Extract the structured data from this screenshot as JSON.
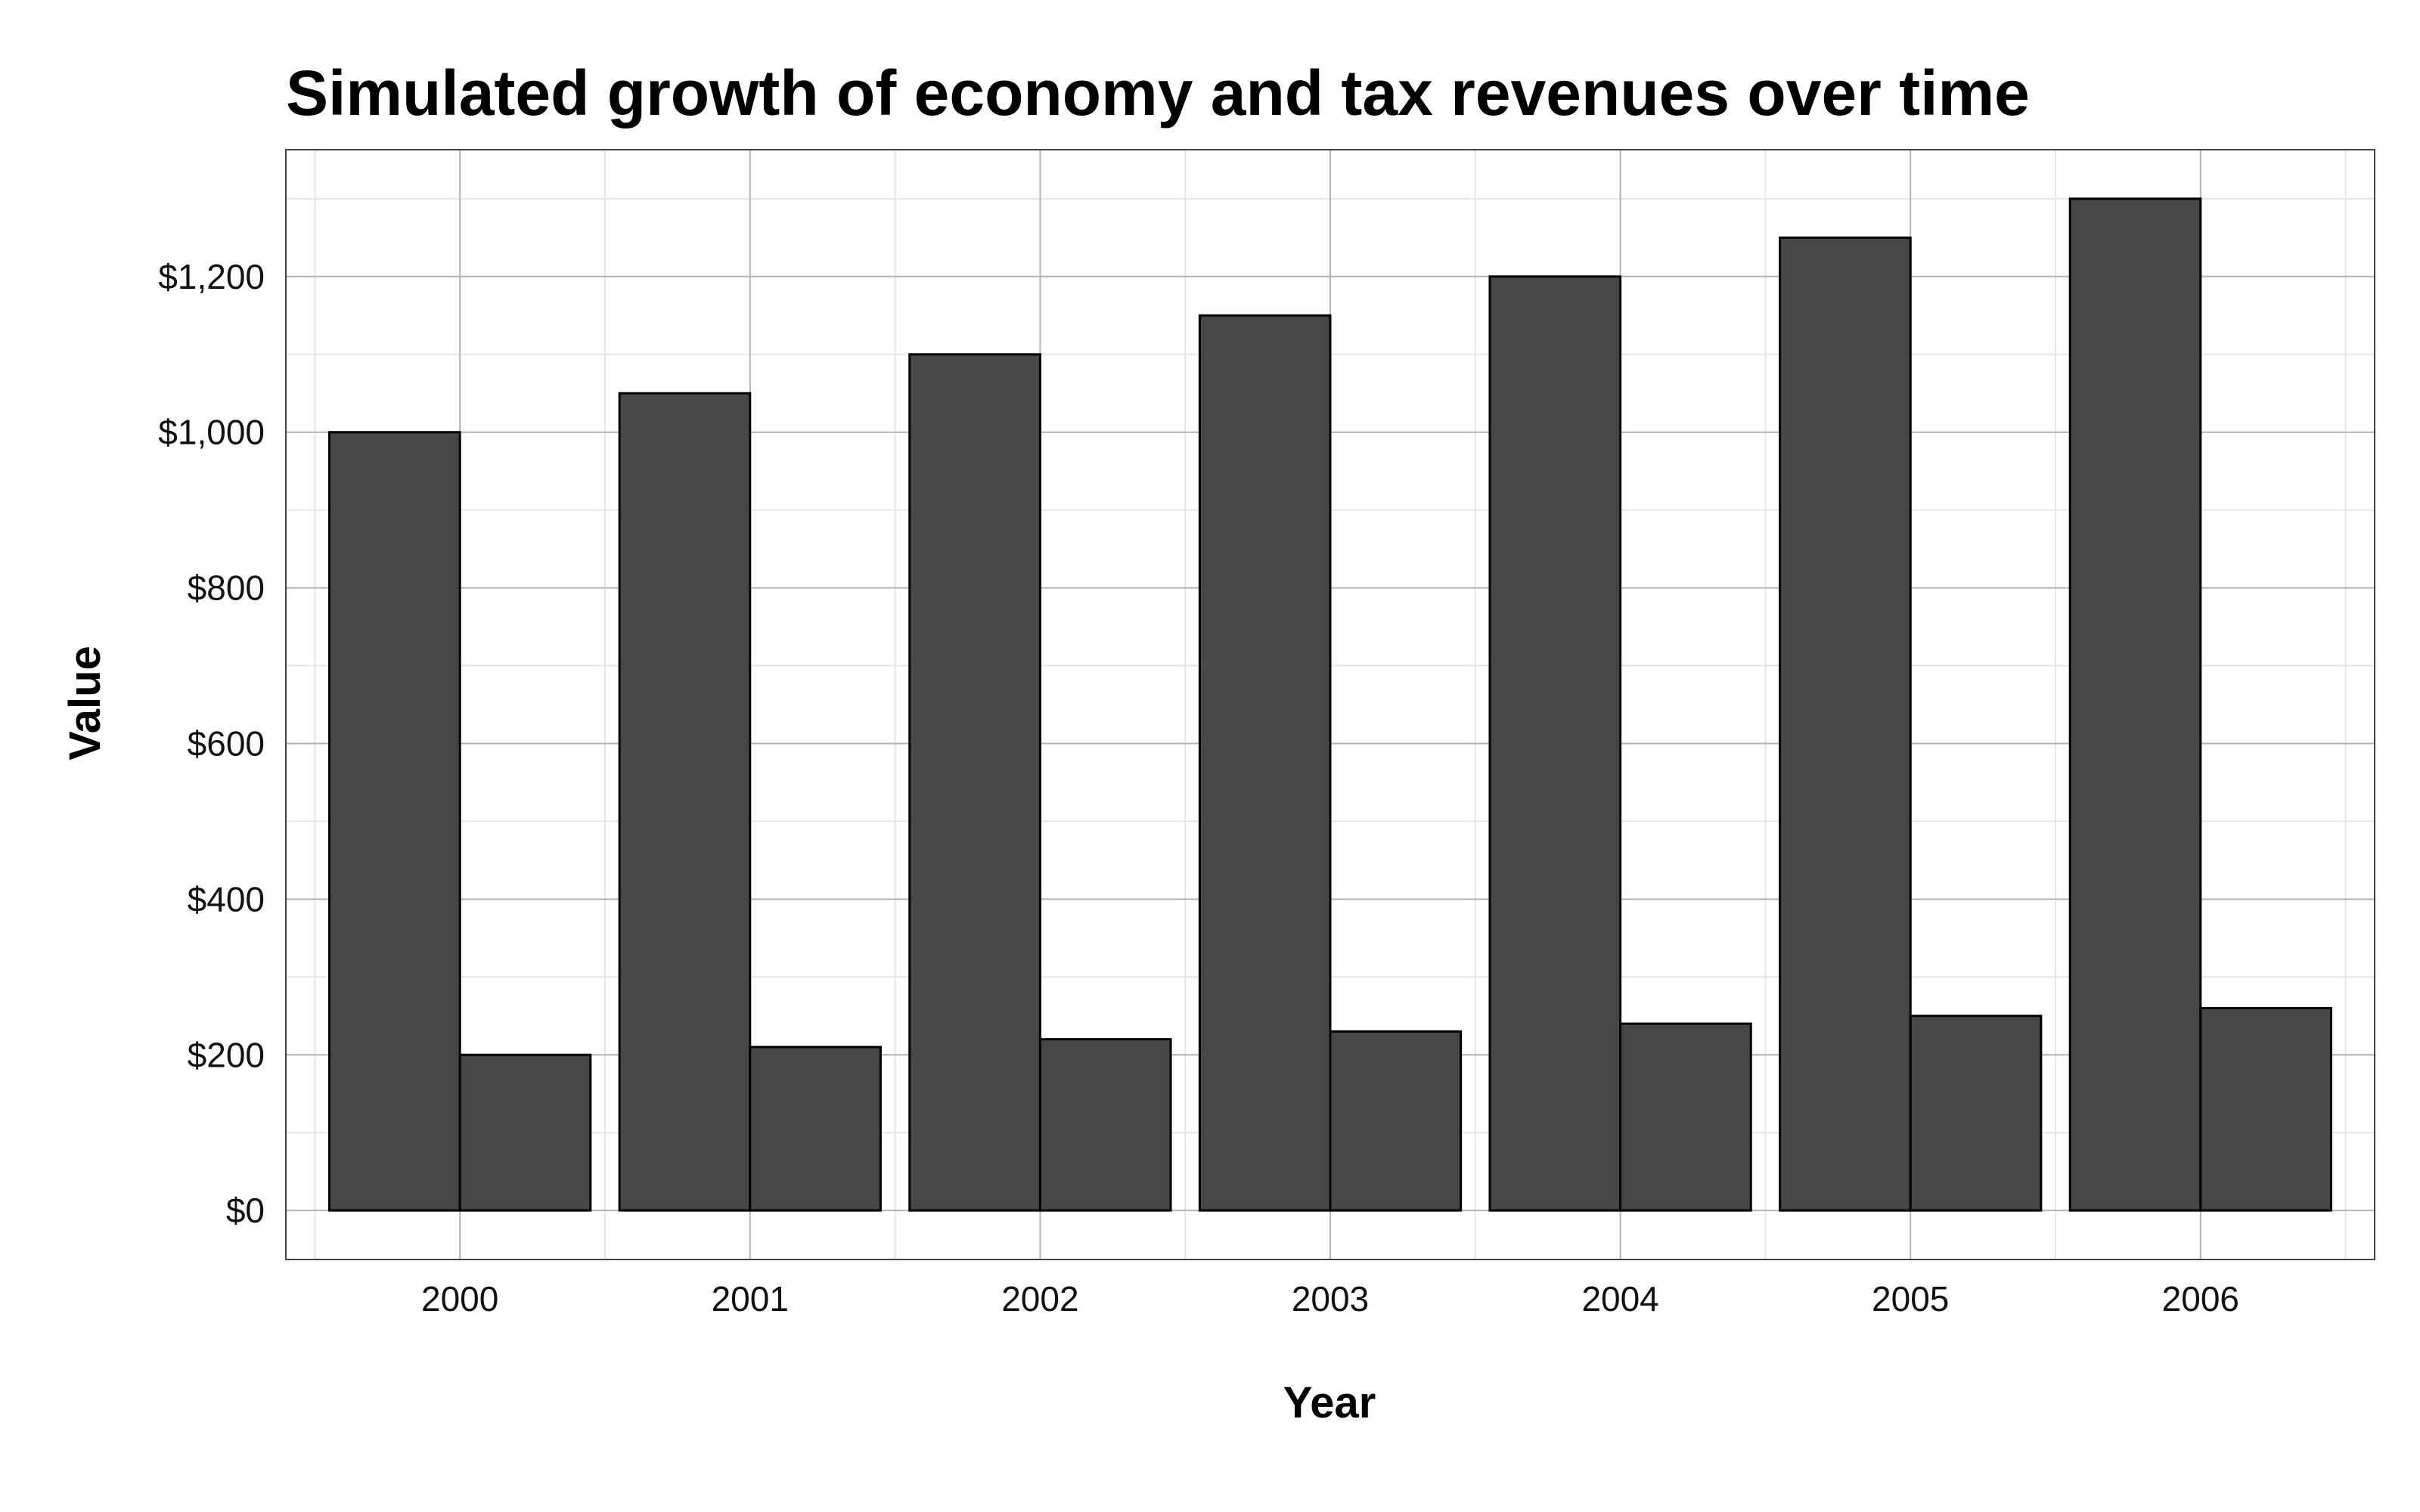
{
  "chart_data": {
    "type": "bar",
    "title": "Simulated growth of economy and tax revenues over time",
    "xlabel": "Year",
    "ylabel": "Value",
    "categories": [
      "2000",
      "2001",
      "2002",
      "2003",
      "2004",
      "2005",
      "2006"
    ],
    "series": [
      {
        "values": [
          1000,
          1050,
          1100,
          1150,
          1200,
          1250,
          1300
        ]
      },
      {
        "values": [
          200,
          210,
          220,
          230,
          240,
          250,
          260
        ]
      }
    ],
    "ylim": [
      -63,
      1363
    ],
    "yticks": [
      0,
      200,
      400,
      600,
      800,
      1000,
      1200
    ],
    "ytick_labels": [
      "$0",
      "$200",
      "$400",
      "$600",
      "$800",
      "$1,000",
      "$1,200"
    ],
    "bar_color": "#474747",
    "bar_outline": "#000000",
    "grid": true,
    "legend": "none",
    "position": "dodge"
  }
}
